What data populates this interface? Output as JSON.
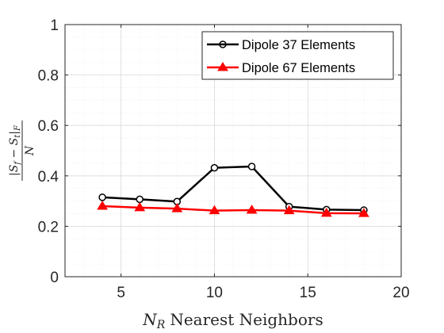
{
  "chart_data": {
    "type": "line",
    "xlabel_var": "N",
    "xlabel_sub": "R",
    "xlabel_text": "Nearest Neighbors",
    "ylabel_numerator": "|S",
    "ylabel_num_sub_f": "f",
    "ylabel_minus": " − S",
    "ylabel_num_sub_t": "t",
    "ylabel_close": "|",
    "ylabel_norm_sub": "F",
    "ylabel_denominator": "N",
    "xlim": [
      2,
      20
    ],
    "ylim": [
      0,
      1
    ],
    "xticks": [
      5,
      10,
      15,
      20
    ],
    "xtick_labels": [
      "5",
      "10",
      "15",
      "20"
    ],
    "yticks": [
      0,
      0.2,
      0.4,
      0.6,
      0.8,
      1
    ],
    "ytick_labels": [
      "0",
      "0.2",
      "0.4",
      "0.6",
      "0.8",
      "1"
    ],
    "grid": true,
    "minor_grid": true,
    "legend_position": "top-right",
    "series": [
      {
        "name": "Dipole 37 Elements",
        "color": "#000000",
        "marker": "circle",
        "x": [
          4,
          6,
          8,
          10,
          12,
          14,
          16,
          18
        ],
        "y": [
          0.315,
          0.307,
          0.298,
          0.432,
          0.437,
          0.278,
          0.266,
          0.264
        ]
      },
      {
        "name": "Dipole 67 Elements",
        "color": "#ff0000",
        "marker": "triangle",
        "x": [
          4,
          6,
          8,
          10,
          12,
          14,
          16,
          18
        ],
        "y": [
          0.28,
          0.274,
          0.27,
          0.262,
          0.264,
          0.262,
          0.252,
          0.251
        ]
      }
    ]
  }
}
